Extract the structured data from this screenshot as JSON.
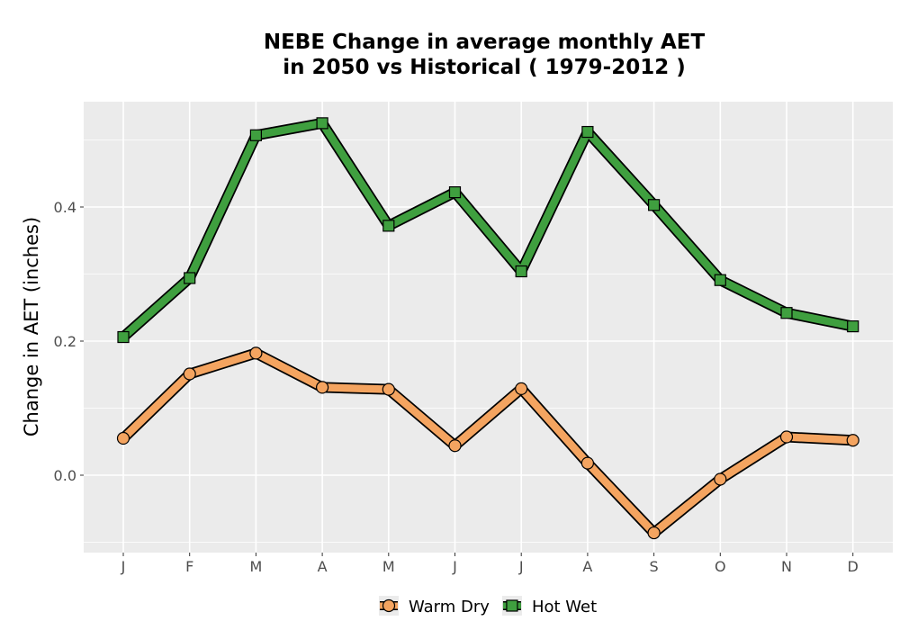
{
  "chart_data": {
    "type": "line",
    "title_line1": "NEBE  Change in average monthly AET",
    "title_line2": "in 2050 vs Historical ( 1979-2012 )",
    "xlabel": "",
    "ylabel": "Change in AET (inches)",
    "categories": [
      "J",
      "F",
      "M",
      "A",
      "M",
      "J",
      "J",
      "A",
      "S",
      "O",
      "N",
      "D"
    ],
    "y_ticks": [
      "0.0",
      "0.2",
      "0.4"
    ],
    "y_tick_values": [
      0.0,
      0.2,
      0.4
    ],
    "ylim": [
      -0.115,
      0.555
    ],
    "grid": true,
    "legend_position": "bottom",
    "series": [
      {
        "name": "Warm Dry",
        "marker": "circle",
        "color": "#F4A460",
        "values": [
          0.055,
          0.151,
          0.182,
          0.131,
          0.128,
          0.044,
          0.129,
          0.018,
          -0.086,
          -0.006,
          0.057,
          0.052
        ]
      },
      {
        "name": "Hot Wet",
        "marker": "square",
        "color": "#3F9F3F",
        "values": [
          0.206,
          0.294,
          0.507,
          0.525,
          0.372,
          0.422,
          0.304,
          0.512,
          0.403,
          0.291,
          0.242,
          0.222
        ]
      }
    ],
    "colors": {
      "panel_bg": "#EBEBEB",
      "grid": "#FFFFFF",
      "outline": "#000000"
    }
  }
}
